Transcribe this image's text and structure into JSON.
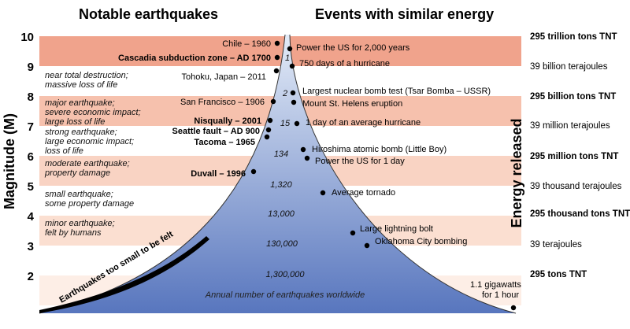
{
  "headers": {
    "left": "Notable earthquakes",
    "right": "Events with similar energy"
  },
  "axes": {
    "left_label": "Magnitude (M)",
    "right_label": "Energy released",
    "magnitude_ticks": [
      "2",
      "3",
      "4",
      "5",
      "6",
      "7",
      "8",
      "9",
      "10"
    ]
  },
  "severity_descriptions": [
    {
      "lines": [
        "near total destruction;",
        "massive loss of life"
      ]
    },
    {
      "lines": [
        "major earthquake;",
        "severe economic impact;",
        "large loss of life"
      ]
    },
    {
      "lines": [
        "strong earthquake;",
        "large economic impact;",
        "loss of life"
      ]
    },
    {
      "lines": [
        "moderate earthquake;",
        "property damage"
      ]
    },
    {
      "lines": [
        "small earthquake;",
        "some property damage"
      ]
    },
    {
      "lines": [
        "minor earthquake;",
        "felt by humans"
      ]
    }
  ],
  "notable_earthquakes": [
    {
      "label": "Chile – 1960",
      "bold": false
    },
    {
      "label": "Cascadia subduction zone – AD 1700",
      "bold": true
    },
    {
      "label": "Tohoku, Japan – 2011",
      "bold": false
    },
    {
      "label": "San Francisco – 1906",
      "bold": false
    },
    {
      "label": "Nisqually – 2001",
      "bold": true
    },
    {
      "label": "Seattle fault – AD 900",
      "bold": true
    },
    {
      "label": "Tacoma – 1965",
      "bold": true
    },
    {
      "label": "Duvall – 1996",
      "bold": true
    }
  ],
  "similar_energy_events": [
    {
      "label": "Power the US for 2,000 years"
    },
    {
      "label": "750 days of a hurricane"
    },
    {
      "label": "Largest nuclear bomb test (Tsar Bomba – USSR)"
    },
    {
      "label": "Mount St. Helens eruption"
    },
    {
      "label": "1 day of an average hurricane"
    },
    {
      "label": "Hiroshima atomic bomb (Little Boy)"
    },
    {
      "label": "Power the US for 1 day"
    },
    {
      "label": "Average tornado"
    },
    {
      "label": "Large lightning bolt"
    },
    {
      "label": "Oklahoma City bombing"
    },
    {
      "label": "1.1 gigawatts for 1 hour"
    }
  ],
  "annual_counts": [
    "1",
    "2",
    "15",
    "134",
    "1,320",
    "13,000",
    "130,000",
    "1,300,000"
  ],
  "annual_caption": "Annual number of earthquakes worldwide",
  "too_small_label": "Earthquakes too small to be felt",
  "energy_labels": [
    {
      "text": "295 trillion tons TNT",
      "bold": true
    },
    {
      "text": "39 billion terajoules",
      "bold": false
    },
    {
      "text": "295 billion tons TNT",
      "bold": true
    },
    {
      "text": "39 million terajoules",
      "bold": false
    },
    {
      "text": "295 million tons TNT",
      "bold": true
    },
    {
      "text": "39 thousand terajoules",
      "bold": false
    },
    {
      "text": "295 thousand tons TNT",
      "bold": true
    },
    {
      "text": "39 terajoules",
      "bold": false
    },
    {
      "text": "295 tons TNT",
      "bold": true
    }
  ],
  "colors": {
    "band_m10_9": "#f0a38c",
    "band_m8_7": "#f6c1ad",
    "band_m6_5": "#f9d3c3",
    "band_m4_3": "#fbdfd1",
    "band_m2": "#fdeee6",
    "funnel_top": "#e3ebf7",
    "funnel_bottom": "#5876be"
  }
}
